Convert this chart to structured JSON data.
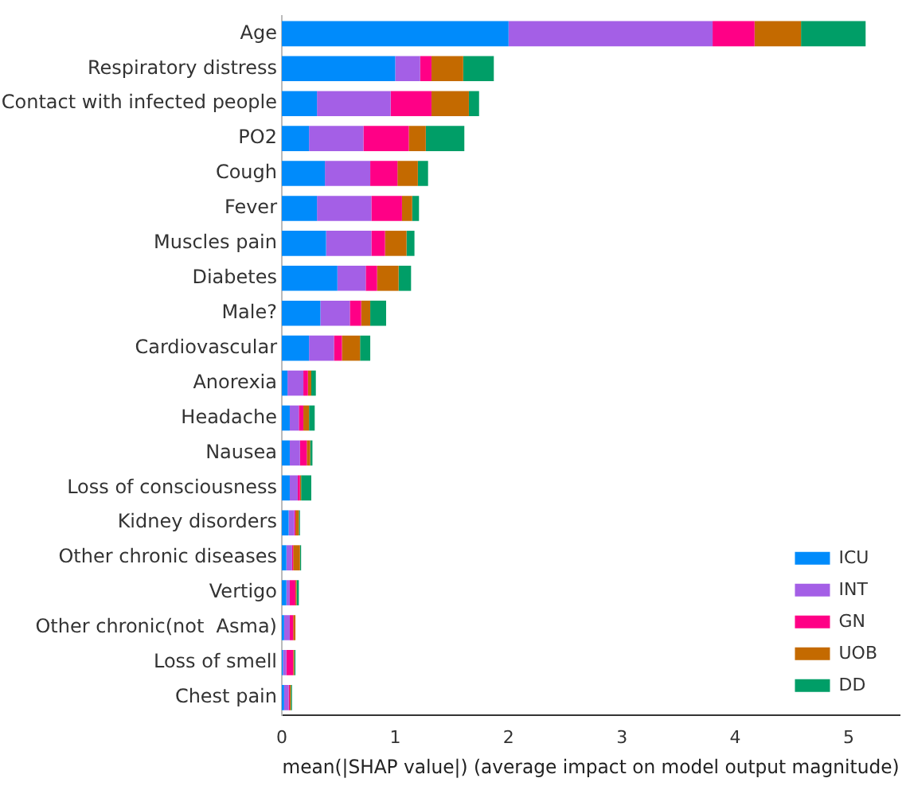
{
  "chart_data": {
    "type": "bar",
    "orientation": "horizontal",
    "stacked": true,
    "xlabel": "mean(|SHAP value|) (average impact on model output magnitude)",
    "categories": [
      "Age",
      "Respiratory distress",
      "Contact with infected people",
      "PO2",
      "Cough",
      "Fever",
      "Muscles pain",
      "Diabetes",
      "Male?",
      "Cardiovascular",
      "Anorexia",
      "Headache",
      "Nausea",
      "Loss of consciousness",
      "Kidney disorders",
      "Other chronic diseases",
      "Vertigo",
      "Other chronic(not  Asma)",
      "Loss of smell",
      "Chest pain"
    ],
    "series": [
      {
        "name": "ICU",
        "color": "#008bfb",
        "values": [
          2.0,
          1.0,
          0.31,
          0.24,
          0.38,
          0.31,
          0.39,
          0.49,
          0.34,
          0.24,
          0.05,
          0.07,
          0.07,
          0.07,
          0.06,
          0.04,
          0.04,
          0.02,
          0.01,
          0.02
        ]
      },
      {
        "name": "INT",
        "color": "#a45fe6",
        "values": [
          1.8,
          0.22,
          0.65,
          0.48,
          0.4,
          0.48,
          0.4,
          0.25,
          0.26,
          0.22,
          0.14,
          0.08,
          0.09,
          0.07,
          0.05,
          0.05,
          0.03,
          0.05,
          0.03,
          0.04
        ]
      },
      {
        "name": "GN",
        "color": "#ff0086",
        "values": [
          0.37,
          0.1,
          0.36,
          0.4,
          0.24,
          0.27,
          0.12,
          0.1,
          0.1,
          0.07,
          0.04,
          0.04,
          0.06,
          0.02,
          0.01,
          0.01,
          0.05,
          0.03,
          0.06,
          0.01
        ]
      },
      {
        "name": "UOB",
        "color": "#c46a00",
        "values": [
          0.41,
          0.28,
          0.33,
          0.15,
          0.18,
          0.09,
          0.19,
          0.19,
          0.08,
          0.16,
          0.03,
          0.05,
          0.03,
          0.01,
          0.03,
          0.06,
          0.01,
          0.02,
          0.01,
          0.01
        ]
      },
      {
        "name": "DD",
        "color": "#009e67",
        "values": [
          0.57,
          0.27,
          0.09,
          0.34,
          0.09,
          0.06,
          0.07,
          0.11,
          0.14,
          0.09,
          0.04,
          0.05,
          0.02,
          0.09,
          0.01,
          0.01,
          0.02,
          0.0,
          0.01,
          0.01
        ]
      }
    ],
    "xlim": [
      0,
      5.45
    ],
    "xticks": [
      0,
      1,
      2,
      3,
      4,
      5
    ],
    "grid": false,
    "legend": "bottom right"
  }
}
